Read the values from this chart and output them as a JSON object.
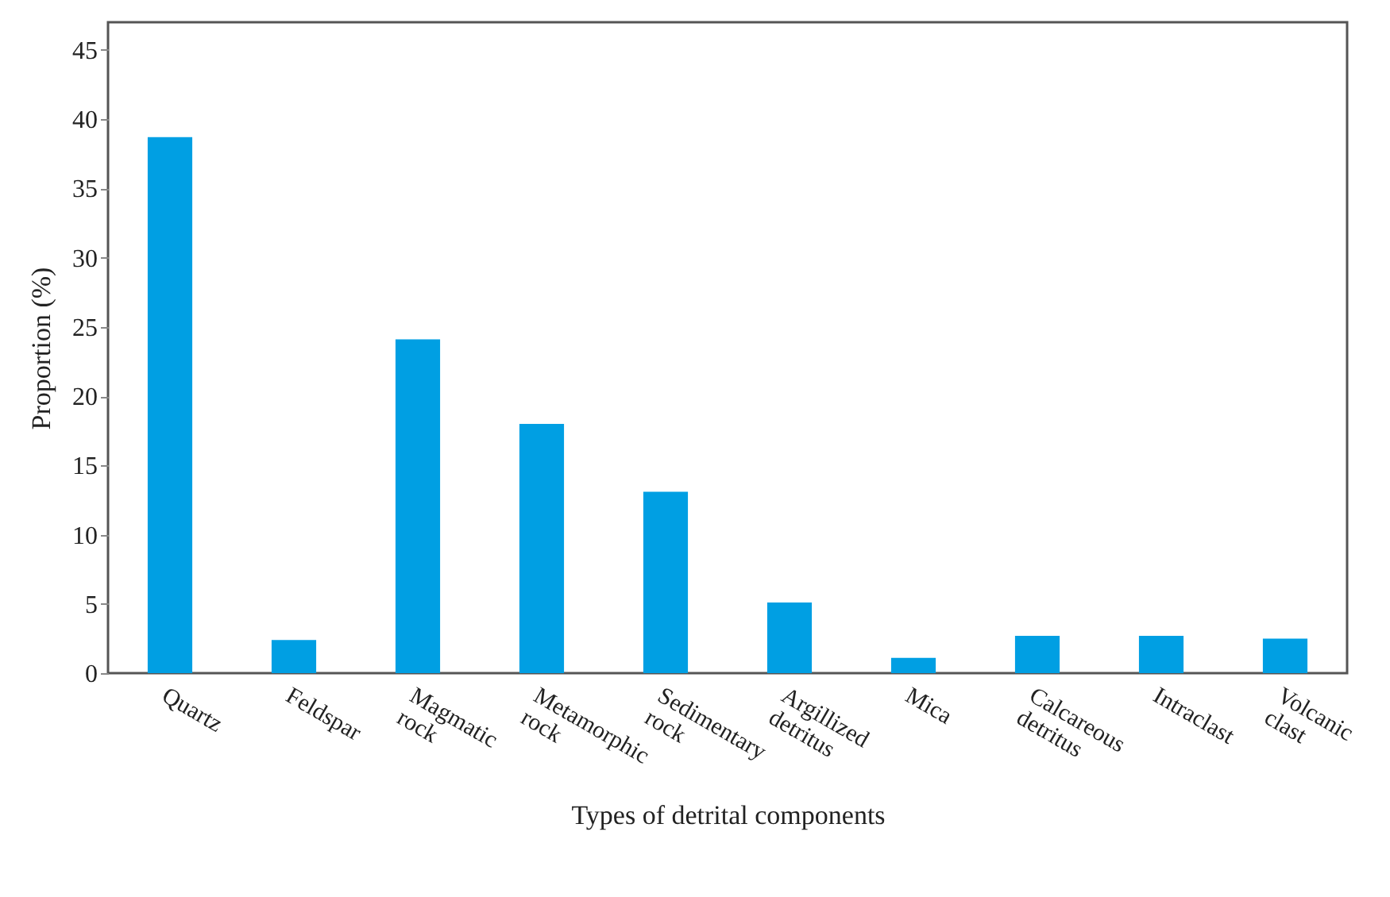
{
  "chart_data": {
    "type": "bar",
    "xlabel": "Types of detrital components",
    "ylabel": "Proportion (%)",
    "categories": [
      "Quartz",
      "Feldspar",
      "Magmatic rock",
      "Metamorphic rock",
      "Sedimentary rock",
      "Argillized detritus",
      "Mica",
      "Calcareous detritus",
      "Intraclast",
      "Volcanic clast"
    ],
    "values": [
      38.7,
      2.4,
      24.1,
      18.0,
      13.1,
      5.1,
      1.1,
      2.7,
      2.7,
      2.5
    ],
    "color": "#009fe3",
    "ylim": [
      0,
      47
    ],
    "yticks": [
      0,
      5,
      10,
      15,
      20,
      25,
      30,
      35,
      40,
      45
    ],
    "grid": false
  }
}
